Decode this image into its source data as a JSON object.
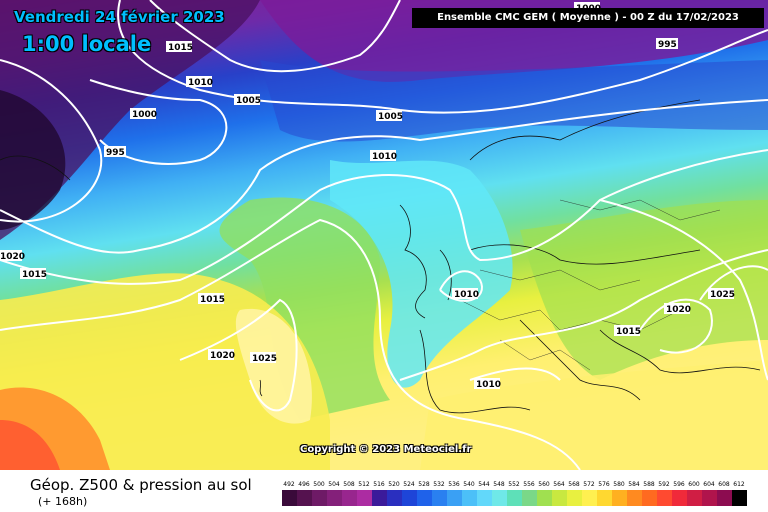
{
  "header": {
    "date": "Vendredi 24 février 2023",
    "local_time": "1:00 locale",
    "run_info": "Ensemble CMC GEM  ( Moyenne )  -  00 Z du 17/02/2023"
  },
  "footer": {
    "product": "Géop. Z500 & pression au sol",
    "forecast_hour": "(+ 168h)",
    "copyright": "Copyright © 2023 Meteociel.fr"
  },
  "isobar_labels": [
    "1015",
    "1010",
    "1005",
    "1000",
    "995",
    "1005",
    "1010",
    "995",
    "1000",
    "1020",
    "1015",
    "1015",
    "1020",
    "1025",
    "1010",
    "1010",
    "1015",
    "1020",
    "1025"
  ],
  "legend": {
    "values": [
      "492",
      "496",
      "500",
      "504",
      "508",
      "512",
      "516",
      "520",
      "524",
      "528",
      "532",
      "536",
      "540",
      "544",
      "548",
      "552",
      "556",
      "560",
      "564",
      "568",
      "572",
      "576",
      "580",
      "584",
      "588",
      "592",
      "596",
      "600",
      "604",
      "608",
      "612"
    ],
    "colors": [
      "#3a0a3a",
      "#55124f",
      "#6e1a66",
      "#84207a",
      "#98268e",
      "#ac2ca2",
      "#3b1a9a",
      "#2a2fbf",
      "#1e45d8",
      "#1f62ea",
      "#2a80f0",
      "#3aa0f4",
      "#4cc0f8",
      "#62d8fa",
      "#6fe8e8",
      "#5ee0b8",
      "#7ad888",
      "#a0e050",
      "#c8e840",
      "#e8f040",
      "#fff050",
      "#ffd830",
      "#ffb020",
      "#ff8a20",
      "#ff6a20",
      "#ff4a30",
      "#f02a3a",
      "#d01e44",
      "#b0144c",
      "#8c0c50",
      "#000000"
    ]
  }
}
